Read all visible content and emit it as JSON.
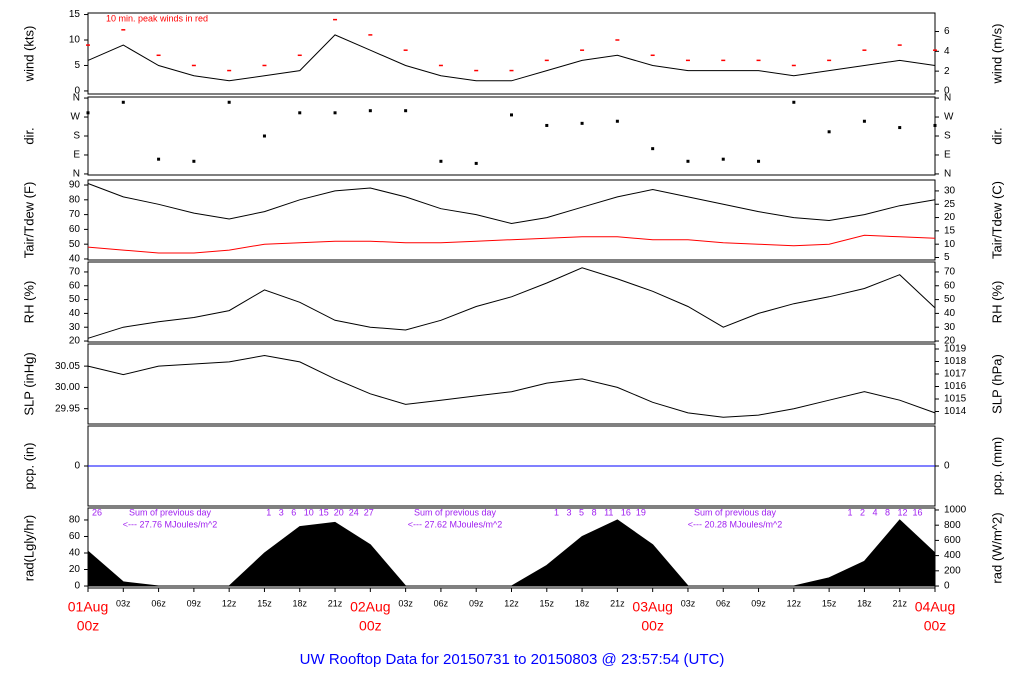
{
  "title": "UW Rooftop Data for 20150731  to  20150803 @ 23:57:54  (UTC)",
  "chart_data": [
    {
      "type": "line",
      "ylabel": "wind (kts)",
      "y2label": "wind (m/s)",
      "annotation": "10 min. peak winds in red",
      "x": [
        0,
        3,
        6,
        9,
        12,
        15,
        18,
        21,
        24,
        27,
        30,
        33,
        36,
        39,
        42,
        45,
        48,
        51,
        54,
        57,
        60,
        63,
        66,
        69,
        72
      ],
      "series": [
        {
          "name": "wind",
          "color": "#000000",
          "values": [
            6,
            9,
            5,
            3,
            2,
            3,
            4,
            11,
            8,
            5,
            3,
            2,
            2,
            4,
            6,
            7,
            5,
            4,
            4,
            4,
            3,
            4,
            5,
            6,
            5
          ]
        },
        {
          "name": "peak",
          "color": "#ff0000",
          "marker": "dash",
          "values": [
            9,
            12,
            7,
            5,
            4,
            5,
            7,
            14,
            11,
            8,
            5,
            4,
            4,
            6,
            8,
            10,
            7,
            6,
            6,
            6,
            5,
            6,
            8,
            9,
            8
          ]
        }
      ],
      "ylim": [
        -0.6,
        15.3
      ],
      "yticks": [
        0,
        5,
        10,
        15
      ],
      "y2lim": [
        -0.31,
        7.87
      ],
      "y2ticks": [
        0,
        2,
        4,
        6
      ]
    },
    {
      "type": "scatter",
      "ylabel": "dir.",
      "y2label": "dir.",
      "x": [
        0,
        3,
        6,
        9,
        12,
        15,
        18,
        21,
        24,
        27,
        30,
        33,
        36,
        39,
        42,
        45,
        48,
        51,
        54,
        57,
        60,
        63,
        66,
        69,
        72
      ],
      "series": [
        {
          "name": "dir",
          "color": "#000000",
          "values": [
            290,
            340,
            70,
            60,
            340,
            180,
            290,
            290,
            300,
            300,
            60,
            50,
            280,
            230,
            240,
            250,
            120,
            60,
            70,
            60,
            340,
            200,
            250,
            220,
            230
          ]
        }
      ],
      "ylim": [
        -5,
        365
      ],
      "yticks": [
        {
          "value": 360,
          "label": "N"
        },
        {
          "value": 270,
          "label": "W"
        },
        {
          "value": 180,
          "label": "S"
        },
        {
          "value": 90,
          "label": "E"
        },
        {
          "value": 0,
          "label": "N"
        }
      ],
      "y2lim": [
        -5,
        365
      ],
      "y2ticks": [
        {
          "value": 360,
          "label": "N"
        },
        {
          "value": 270,
          "label": "W"
        },
        {
          "value": 180,
          "label": "S"
        },
        {
          "value": 90,
          "label": "E"
        },
        {
          "value": 0,
          "label": "N"
        }
      ]
    },
    {
      "type": "line",
      "ylabel": "Tair/Tdew (F)",
      "y2label": "Tair/Tdew (C)",
      "x": [
        0,
        3,
        6,
        9,
        12,
        15,
        18,
        21,
        24,
        27,
        30,
        33,
        36,
        39,
        42,
        45,
        48,
        51,
        54,
        57,
        60,
        63,
        66,
        69,
        72
      ],
      "series": [
        {
          "name": "Tair",
          "color": "#000000",
          "values": [
            91,
            82,
            77,
            71,
            67,
            72,
            80,
            86,
            88,
            82,
            74,
            70,
            64,
            68,
            75,
            82,
            87,
            82,
            77,
            72,
            68,
            66,
            70,
            76,
            80
          ]
        },
        {
          "name": "Tdew",
          "color": "#ff0000",
          "values": [
            48,
            46,
            44,
            44,
            46,
            50,
            51,
            52,
            52,
            51,
            51,
            52,
            53,
            54,
            55,
            55,
            53,
            53,
            51,
            50,
            49,
            50,
            56,
            55,
            54
          ]
        }
      ],
      "ylim": [
        39.3,
        93.4
      ],
      "yticks": [
        40,
        50,
        60,
        70,
        80,
        90
      ],
      "y2lim": [
        4.06,
        34.1
      ],
      "y2ticks": [
        5,
        10,
        15,
        20,
        25,
        30
      ]
    },
    {
      "type": "line",
      "ylabel": "RH (%)",
      "y2label": "RH (%)",
      "x": [
        0,
        3,
        6,
        9,
        12,
        15,
        18,
        21,
        24,
        27,
        30,
        33,
        36,
        39,
        42,
        45,
        48,
        51,
        54,
        57,
        60,
        63,
        66,
        69,
        72
      ],
      "series": [
        {
          "name": "RH",
          "color": "#000000",
          "values": [
            22,
            30,
            34,
            37,
            42,
            57,
            48,
            35,
            30,
            28,
            35,
            45,
            52,
            62,
            73,
            65,
            56,
            45,
            30,
            40,
            47,
            52,
            58,
            68,
            44
          ]
        }
      ],
      "ylim": [
        19.3,
        77.2
      ],
      "yticks": [
        20,
        30,
        40,
        50,
        60,
        70
      ],
      "y2lim": [
        19.3,
        77.2
      ],
      "y2ticks": [
        20,
        30,
        40,
        50,
        60,
        70
      ]
    },
    {
      "type": "line",
      "ylabel": "SLP (inHg)",
      "y2label": "SLP (hPa)",
      "x": [
        0,
        3,
        6,
        9,
        12,
        15,
        18,
        21,
        24,
        27,
        30,
        33,
        36,
        39,
        42,
        45,
        48,
        51,
        54,
        57,
        60,
        63,
        66,
        69,
        72
      ],
      "series": [
        {
          "name": "SLP",
          "color": "#000000",
          "values": [
            30.05,
            30.03,
            30.05,
            30.055,
            30.06,
            30.075,
            30.06,
            30.02,
            29.985,
            29.96,
            29.97,
            29.98,
            29.99,
            30.01,
            30.02,
            30.0,
            29.965,
            29.94,
            29.93,
            29.935,
            29.95,
            29.97,
            29.99,
            29.97,
            29.94
          ]
        }
      ],
      "ylim": [
        29.914,
        30.102
      ],
      "yticks": [
        {
          "value": 29.95,
          "label": "29.95"
        },
        {
          "value": 30.0,
          "label": "30.00"
        },
        {
          "value": 30.05,
          "label": "30.05"
        }
      ],
      "y2lim": [
        1013.0,
        1019.4
      ],
      "y2ticks": [
        1014,
        1015,
        1016,
        1017,
        1018,
        1019
      ]
    },
    {
      "type": "line",
      "ylabel": "pcp. (in)",
      "y2label": "pcp. (mm)",
      "x": [
        0,
        72
      ],
      "series": [
        {
          "name": "pcp",
          "color": "#0000ff",
          "values": [
            0,
            0
          ]
        }
      ],
      "ylim": [
        -1,
        1
      ],
      "yticks": [
        0
      ],
      "y2lim": [
        -25,
        25
      ],
      "y2ticks": [
        0
      ]
    },
    {
      "type": "area",
      "ylabel": "rad(Lgly/hr)",
      "y2label": "rad (W/m^2)",
      "annotations": [
        "26",
        "Sum of previous day",
        "<--- 27.76 MJoules/m^2",
        "1   3   6   10  15  20  24  27",
        "Sum of previous day",
        "<--- 27.62 MJoules/m^2",
        "1   3   5   8   11   16  19",
        "Sum of previous day",
        "<--- 20.28 MJoules/m^2",
        "1   2   4   8   12  16"
      ],
      "x": [
        0,
        3,
        6,
        9,
        12,
        15,
        18,
        21,
        24,
        27,
        30,
        33,
        36,
        39,
        42,
        45,
        48,
        51,
        54,
        57,
        60,
        63,
        66,
        69,
        72
      ],
      "series": [
        {
          "name": "rad",
          "color": "#000000",
          "values": [
            42,
            5,
            0,
            0,
            0,
            40,
            72,
            77,
            50,
            0,
            0,
            0,
            0,
            25,
            60,
            80,
            50,
            0,
            0,
            0,
            0,
            10,
            30,
            80,
            40
          ]
        }
      ],
      "ylim": [
        -2.4,
        94.5
      ],
      "yticks": [
        0,
        20,
        40,
        60,
        80
      ],
      "y2lim": [
        -26,
        1026
      ],
      "y2ticks": [
        0,
        200,
        400,
        600,
        800,
        1000
      ],
      "xlim": [
        0,
        72
      ],
      "xticks": [
        {
          "value": 0,
          "label": "01Aug",
          "sublabel": "00z"
        },
        {
          "value": 3,
          "label": "03z"
        },
        {
          "value": 6,
          "label": "06z"
        },
        {
          "value": 9,
          "label": "09z"
        },
        {
          "value": 12,
          "label": "12z"
        },
        {
          "value": 15,
          "label": "15z"
        },
        {
          "value": 18,
          "label": "18z"
        },
        {
          "value": 21,
          "label": "21z"
        },
        {
          "value": 24,
          "label": "02Aug",
          "sublabel": "00z"
        },
        {
          "value": 27,
          "label": "03z"
        },
        {
          "value": 30,
          "label": "06z"
        },
        {
          "value": 33,
          "label": "09z"
        },
        {
          "value": 36,
          "label": "12z"
        },
        {
          "value": 39,
          "label": "15z"
        },
        {
          "value": 42,
          "label": "18z"
        },
        {
          "value": 45,
          "label": "21z"
        },
        {
          "value": 48,
          "label": "03Aug",
          "sublabel": "00z"
        },
        {
          "value": 51,
          "label": "03z"
        },
        {
          "value": 54,
          "label": "06z"
        },
        {
          "value": 57,
          "label": "09z"
        },
        {
          "value": 60,
          "label": "12z"
        },
        {
          "value": 63,
          "label": "15z"
        },
        {
          "value": 66,
          "label": "18z"
        },
        {
          "value": 69,
          "label": "21z"
        },
        {
          "value": 72,
          "label": "04Aug",
          "sublabel": "00z"
        }
      ]
    }
  ]
}
